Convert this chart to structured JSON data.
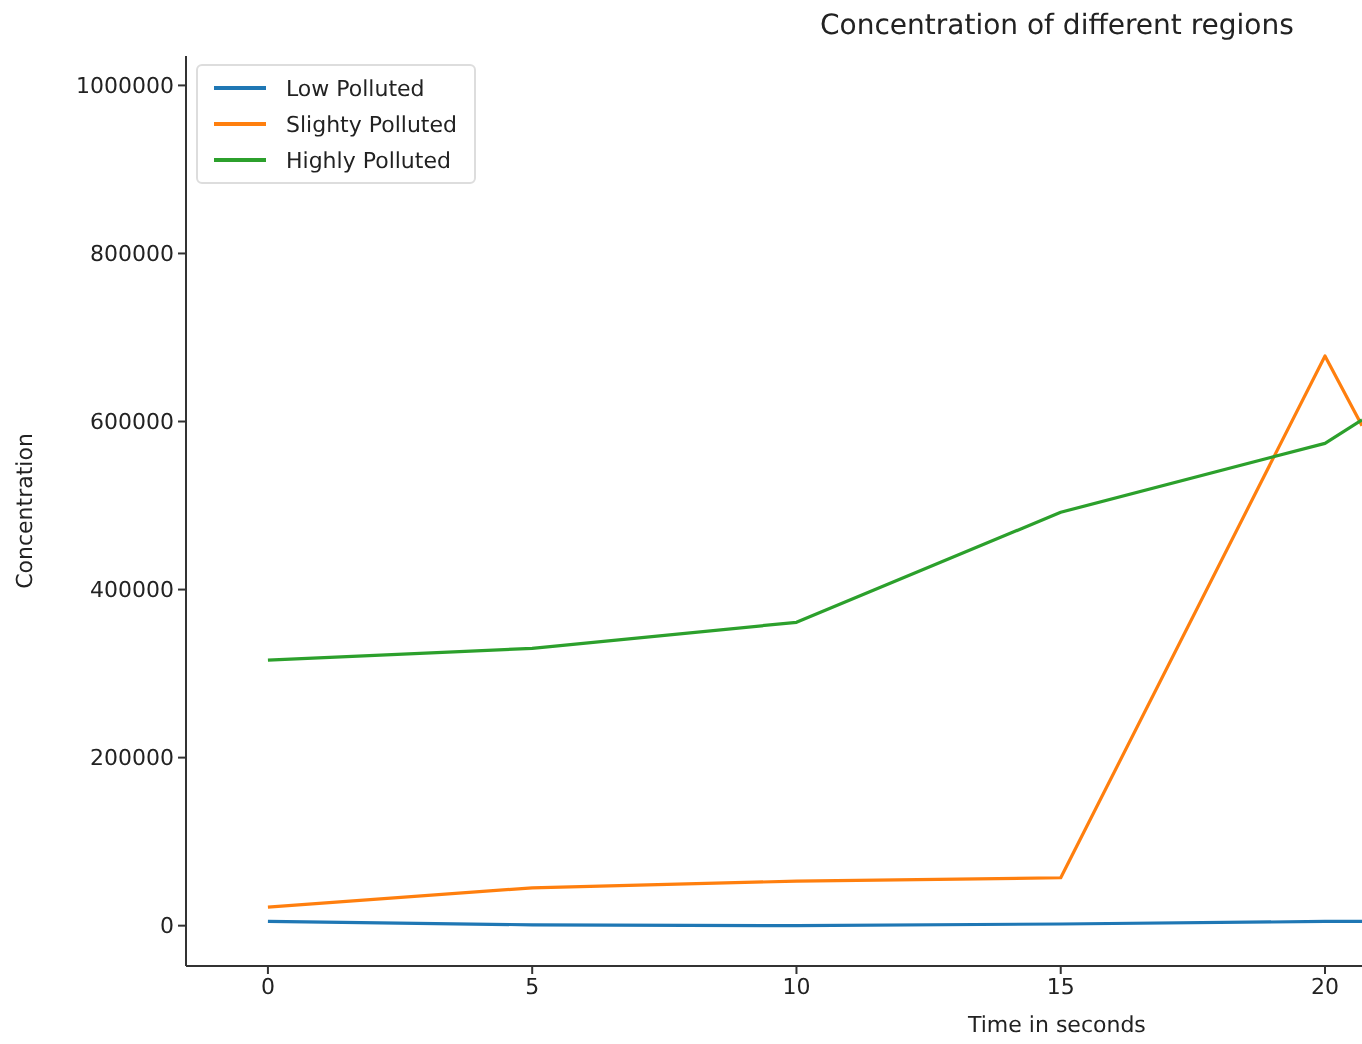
{
  "chart_data": {
    "type": "line",
    "title": "Concentration of different regions",
    "xlabel": "Time in seconds",
    "ylabel": "Concentration",
    "xlim": [
      -1.55,
      20.7
    ],
    "xticks": [
      0,
      5,
      10,
      15,
      20
    ],
    "ylim": [
      -48000,
      1035000
    ],
    "yticks": [
      0,
      200000,
      400000,
      600000,
      800000,
      1000000
    ],
    "legend": "top left",
    "grid": false,
    "marker": "none",
    "line_style": "solid",
    "series": [
      {
        "name": "Low Polluted",
        "color": "#1f77b4",
        "x": [
          0,
          5,
          10,
          15,
          20,
          20.7
        ],
        "values": [
          5000,
          1000,
          0,
          2000,
          5000,
          5000
        ]
      },
      {
        "name": "Slighty Polluted",
        "color": "#ff7f0e",
        "x": [
          0,
          5,
          10,
          15,
          20,
          20.7
        ],
        "values": [
          22000,
          45000,
          53000,
          57000,
          678000,
          595000
        ]
      },
      {
        "name": "Highly Polluted",
        "color": "#2ca02c",
        "x": [
          0,
          5,
          10,
          15,
          20,
          20.7
        ],
        "values": [
          316000,
          330000,
          361000,
          492000,
          574000,
          602000
        ]
      }
    ]
  }
}
